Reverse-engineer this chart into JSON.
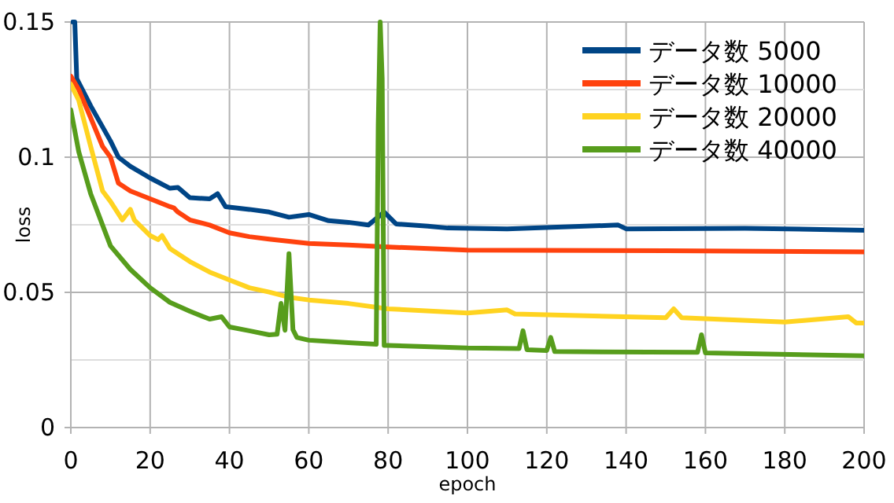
{
  "chart_data": {
    "type": "line",
    "xlabel": "epoch",
    "ylabel": "loss",
    "xlim": [
      0,
      200
    ],
    "ylim": [
      0,
      0.15
    ],
    "xticks": [
      0,
      20,
      40,
      60,
      80,
      100,
      120,
      140,
      160,
      180,
      200
    ],
    "yticks": [
      0,
      {
        "value": 0.025,
        "label": null
      },
      0.05,
      {
        "value": 0.075,
        "label": null
      },
      0.1,
      {
        "value": 0.125,
        "label": null
      },
      0.15
    ],
    "grid": true,
    "legend": "top right",
    "marker": "none",
    "line_style": "solid",
    "series": [
      {
        "name": "データ数 5000",
        "color": "#004586",
        "x": [
          0.5,
          1,
          1.5,
          5,
          10,
          12,
          15,
          20,
          25,
          27,
          30,
          35,
          37,
          39,
          45,
          50,
          55,
          60,
          65,
          70,
          75,
          79,
          82,
          90,
          95,
          110,
          138,
          140,
          170,
          200
        ],
        "values": [
          0.15,
          0.15,
          0.129,
          0.119,
          0.106,
          0.1,
          0.0966,
          0.0923,
          0.0885,
          0.0888,
          0.085,
          0.0846,
          0.0865,
          0.0817,
          0.0807,
          0.0797,
          0.0778,
          0.0788,
          0.0765,
          0.0759,
          0.0749,
          0.0797,
          0.0753,
          0.0745,
          0.0738,
          0.0735,
          0.0749,
          0.0735,
          0.0737,
          0.073
        ]
      },
      {
        "name": "データ数 10000",
        "color": "#ff420e",
        "x": [
          0,
          2,
          5,
          8,
          10,
          12,
          15,
          20,
          25,
          26,
          27,
          30,
          35,
          40,
          45,
          50,
          60,
          70,
          80,
          100,
          150,
          200
        ],
        "values": [
          0.13,
          0.125,
          0.1146,
          0.104,
          0.1,
          0.0904,
          0.0875,
          0.0846,
          0.0817,
          0.0812,
          0.0797,
          0.0768,
          0.0749,
          0.072,
          0.0706,
          0.0697,
          0.0681,
          0.0675,
          0.0668,
          0.0656,
          0.0654,
          0.065
        ]
      },
      {
        "name": "データ数 20000",
        "color": "#ffd320",
        "x": [
          0,
          2,
          5,
          8,
          10,
          13,
          15,
          16,
          20,
          22,
          23,
          25,
          30,
          35,
          40,
          45,
          50,
          55,
          60,
          70,
          80,
          100,
          110,
          112,
          150,
          152,
          154,
          180,
          196,
          198,
          200
        ],
        "values": [
          0.127,
          0.121,
          0.104,
          0.0875,
          0.0836,
          0.0768,
          0.0807,
          0.0768,
          0.071,
          0.0695,
          0.071,
          0.0662,
          0.0614,
          0.0575,
          0.0546,
          0.0517,
          0.0501,
          0.0482,
          0.0472,
          0.0459,
          0.0439,
          0.0424,
          0.0435,
          0.042,
          0.0406,
          0.0439,
          0.0406,
          0.039,
          0.041,
          0.0387,
          0.0387
        ]
      },
      {
        "name": "データ数 40000",
        "color": "#579d1c",
        "x": [
          0,
          2,
          5,
          8,
          10,
          15,
          20,
          25,
          30,
          35,
          38,
          40,
          45,
          50,
          52,
          53,
          54,
          55,
          56,
          57,
          60,
          70,
          77,
          77.5,
          78,
          78.5,
          79,
          80,
          100,
          113,
          114,
          115,
          120,
          121,
          122,
          158,
          159,
          160,
          200
        ],
        "values": [
          0.1175,
          0.102,
          0.0865,
          0.0749,
          0.0672,
          0.0585,
          0.0517,
          0.0463,
          0.043,
          0.0401,
          0.041,
          0.0372,
          0.0358,
          0.0343,
          0.0345,
          0.0459,
          0.036,
          0.0643,
          0.0362,
          0.0333,
          0.0323,
          0.0314,
          0.0308,
          0.1117,
          0.15,
          0.129,
          0.0304,
          0.0304,
          0.0294,
          0.0292,
          0.0358,
          0.0288,
          0.0285,
          0.0333,
          0.0281,
          0.0278,
          0.0343,
          0.0276,
          0.0265
        ]
      }
    ]
  }
}
